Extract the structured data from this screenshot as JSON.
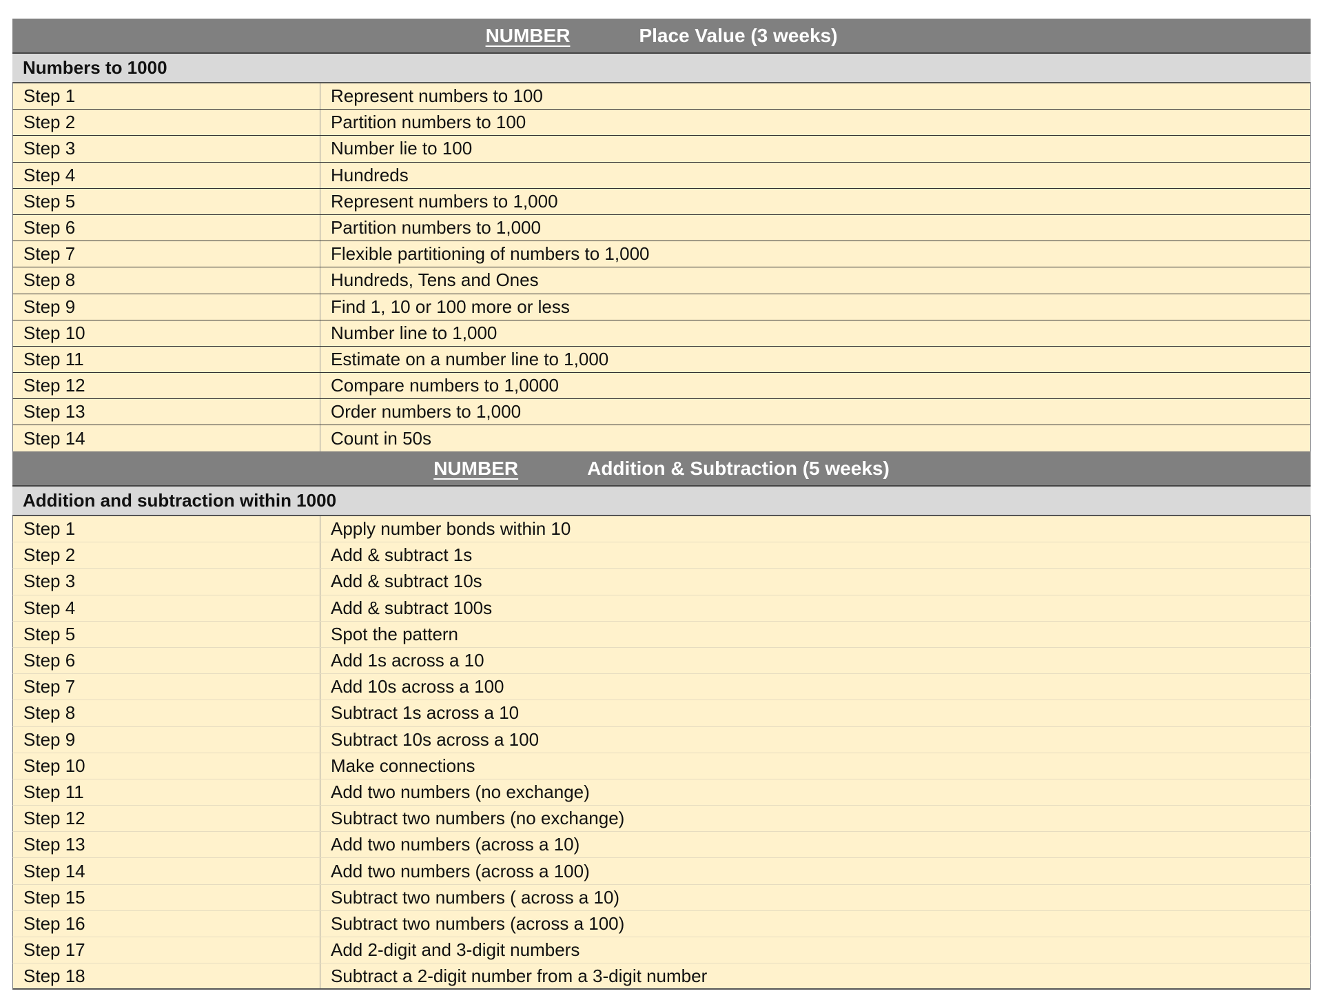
{
  "sections": [
    {
      "strand": "NUMBER",
      "title": "Place Value (3 weeks)",
      "subheading": "Numbers to 1000",
      "steps": [
        [
          "Step 1",
          "Represent numbers to 100"
        ],
        [
          "Step 2",
          "Partition numbers to 100"
        ],
        [
          "Step 3",
          "Number lie to 100"
        ],
        [
          "Step 4",
          "Hundreds"
        ],
        [
          "Step 5",
          "Represent numbers to 1,000"
        ],
        [
          "Step 6",
          "Partition numbers to 1,000"
        ],
        [
          "Step 7",
          "Flexible partitioning of numbers to 1,000"
        ],
        [
          "Step 8",
          "Hundreds, Tens and Ones"
        ],
        [
          "Step 9",
          "Find 1, 10 or 100 more or less"
        ],
        [
          "Step 10",
          "Number line to 1,000"
        ],
        [
          "Step 11",
          "Estimate on a number line to 1,000"
        ],
        [
          "Step 12",
          "Compare numbers to 1,0000"
        ],
        [
          "Step 13",
          "Order numbers to 1,000"
        ],
        [
          "Step 14",
          "Count in 50s"
        ]
      ]
    },
    {
      "strand": "NUMBER",
      "title": "Addition & Subtraction (5 weeks)",
      "subheading": "Addition and subtraction within 1000",
      "steps": [
        [
          "Step 1",
          "Apply number bonds within 10"
        ],
        [
          "Step 2",
          "Add & subtract 1s"
        ],
        [
          "Step 3",
          "Add & subtract 10s"
        ],
        [
          "Step 4",
          "Add & subtract 100s"
        ],
        [
          "Step 5",
          "Spot the pattern"
        ],
        [
          "Step 6",
          "Add 1s across a 10"
        ],
        [
          "Step 7",
          "Add 10s across a 100"
        ],
        [
          "Step 8",
          "Subtract 1s across a 10"
        ],
        [
          "Step 9",
          "Subtract 10s across a 100"
        ],
        [
          "Step 10",
          "Make connections"
        ],
        [
          "Step 11",
          "Add two numbers (no exchange)"
        ],
        [
          "Step 12",
          "Subtract two numbers (no exchange)"
        ],
        [
          "Step 13",
          "Add two numbers (across a 10)"
        ],
        [
          "Step 14",
          "Add two numbers (across a 100)"
        ],
        [
          "Step 15",
          "Subtract two numbers ( across a 10)"
        ],
        [
          "Step 16",
          "Subtract two numbers (across a 100)"
        ],
        [
          "Step 17",
          "Add 2-digit and 3-digit numbers"
        ],
        [
          "Step 18",
          "Subtract a 2-digit number from a 3-digit number"
        ]
      ]
    }
  ],
  "colors": {
    "header": "#808080",
    "subheader": "#d9d9d9",
    "row": "#fff2cc"
  }
}
